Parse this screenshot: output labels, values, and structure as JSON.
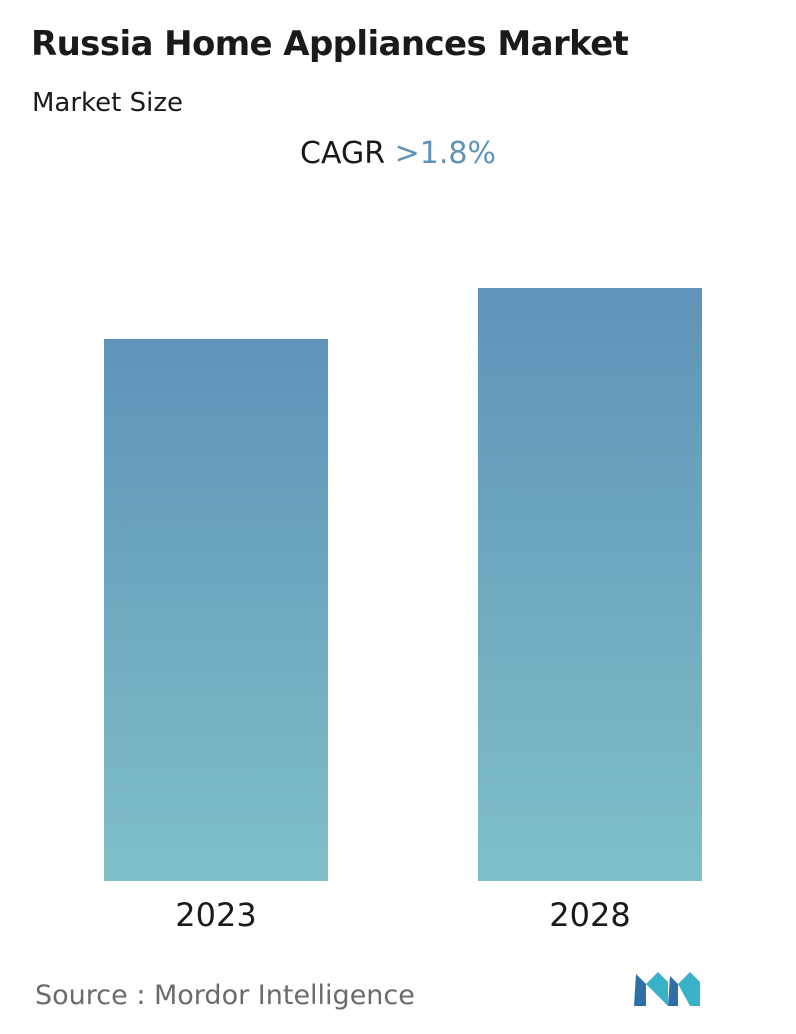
{
  "header": {
    "title": "Russia Home Appliances Market",
    "subtitle": "Market Size",
    "cagr_label": "CAGR",
    "cagr_value": ">1.8%"
  },
  "chart_data": {
    "type": "bar",
    "title": "Russia Home Appliances Market",
    "subtitle": "Market Size",
    "categories": [
      "2023",
      "2028"
    ],
    "values": [
      1.0,
      1.094
    ],
    "value_note": "relative heights; the chart prints no values or y-axis",
    "ylim": [
      0,
      1.094
    ],
    "grid": false,
    "colors": {
      "bar_top": "#5f93b8",
      "bar_bottom": "#7fc0c8"
    }
  },
  "footer": {
    "source": "Source :  Mordor Intelligence",
    "logo_icon": "mordor-intelligence-logo-icon",
    "logo_colors": [
      "#2f6fa8",
      "#39b2c9"
    ]
  }
}
